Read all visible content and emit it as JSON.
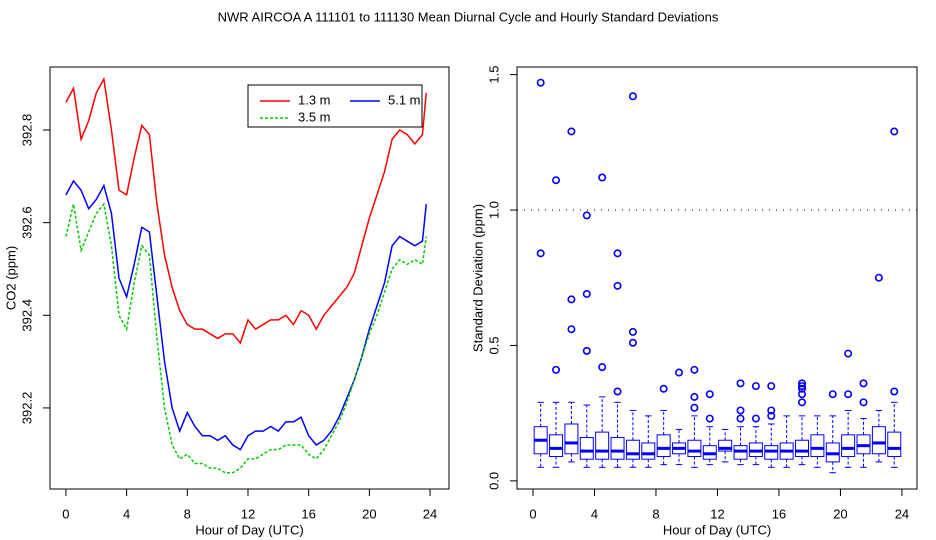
{
  "title": "NWR   AIRCOA A   111101 to 111130   Mean Diurnal Cycle and Hourly Standard Deviations",
  "chart_data": [
    {
      "type": "line",
      "xlabel": "Hour of Day (UTC)",
      "ylabel": "CO2 (ppm)",
      "xlim": [
        -1.05,
        25.25
      ],
      "xticks": [
        0,
        4,
        8,
        12,
        16,
        20,
        24
      ],
      "ylim": [
        392.025,
        392.936
      ],
      "yticks": [
        392.2,
        392.4,
        392.6,
        392.8
      ],
      "legend": "topright",
      "x": [
        0,
        0.5,
        1,
        1.5,
        2,
        2.5,
        3,
        3.5,
        4,
        4.5,
        5,
        5.5,
        6,
        6.5,
        7,
        7.5,
        8,
        8.5,
        9,
        9.5,
        10,
        10.5,
        11,
        11.5,
        12,
        12.5,
        13,
        13.5,
        14,
        14.5,
        15,
        15.5,
        16,
        16.5,
        17,
        17.5,
        18,
        18.5,
        19,
        19.5,
        20,
        20.5,
        21,
        21.5,
        22,
        22.5,
        23,
        23.5,
        23.75
      ],
      "series": [
        {
          "name": "1.3 m",
          "color": "#ff0000",
          "linestyle": "solid",
          "values": [
            392.86,
            392.89,
            392.78,
            392.82,
            392.88,
            392.91,
            392.8,
            392.67,
            392.66,
            392.74,
            392.81,
            392.79,
            392.64,
            392.53,
            392.46,
            392.41,
            392.38,
            392.37,
            392.37,
            392.36,
            392.35,
            392.36,
            392.36,
            392.34,
            392.39,
            392.37,
            392.38,
            392.39,
            392.39,
            392.4,
            392.38,
            392.41,
            392.4,
            392.37,
            392.4,
            392.42,
            392.44,
            392.46,
            392.49,
            392.55,
            392.61,
            392.66,
            392.71,
            392.78,
            392.8,
            392.79,
            392.77,
            392.79,
            392.88
          ]
        },
        {
          "name": "5.1 m",
          "color": "#0000ff",
          "linestyle": "solid",
          "values": [
            392.66,
            392.69,
            392.67,
            392.63,
            392.65,
            392.68,
            392.62,
            392.48,
            392.44,
            392.51,
            392.59,
            392.58,
            392.44,
            392.3,
            392.2,
            392.15,
            392.19,
            392.16,
            392.14,
            392.14,
            392.13,
            392.14,
            392.12,
            392.11,
            392.14,
            392.15,
            392.15,
            392.16,
            392.15,
            392.17,
            392.17,
            392.18,
            392.14,
            392.12,
            392.13,
            392.15,
            392.18,
            392.22,
            392.26,
            392.31,
            392.37,
            392.42,
            392.47,
            392.55,
            392.57,
            392.56,
            392.55,
            392.56,
            392.64
          ]
        },
        {
          "name": "3.5 m",
          "color": "#00cc00",
          "linestyle": "dashed",
          "values": [
            392.57,
            392.64,
            392.54,
            392.58,
            392.62,
            392.64,
            392.55,
            392.4,
            392.37,
            392.47,
            392.55,
            392.53,
            392.35,
            392.2,
            392.12,
            392.09,
            392.1,
            392.08,
            392.08,
            392.07,
            392.07,
            392.06,
            392.06,
            392.07,
            392.09,
            392.09,
            392.1,
            392.11,
            392.11,
            392.12,
            392.12,
            392.12,
            392.1,
            392.09,
            392.11,
            392.14,
            392.17,
            392.21,
            392.26,
            392.31,
            392.36,
            392.4,
            392.45,
            392.5,
            392.52,
            392.51,
            392.52,
            392.51,
            392.57
          ]
        }
      ]
    },
    {
      "type": "box",
      "xlabel": "Hour of Day (UTC)",
      "ylabel": "Standard Deviation (ppm)",
      "xlim": [
        -1.04,
        24.98
      ],
      "xticks": [
        0,
        4,
        8,
        12,
        16,
        20,
        24
      ],
      "ylim": [
        -0.03,
        1.528
      ],
      "yticks": [
        {
          "value": 0,
          "label": "0.0"
        },
        0.5,
        {
          "value": 1,
          "label": "1.0"
        },
        1.5
      ],
      "hline": 1,
      "color": "#0000ff",
      "boxes": [
        {
          "x": 0.5,
          "whislo": 0.05,
          "q1": 0.1,
          "med": 0.15,
          "q3": 0.2,
          "whishi": 0.29,
          "fliers": [
            0.84,
            1.47
          ]
        },
        {
          "x": 1.5,
          "whislo": 0.05,
          "q1": 0.09,
          "med": 0.12,
          "q3": 0.17,
          "whishi": 0.29,
          "fliers": [
            0.41,
            1.11
          ]
        },
        {
          "x": 2.5,
          "whislo": 0.07,
          "q1": 0.1,
          "med": 0.14,
          "q3": 0.21,
          "whishi": 0.29,
          "fliers": [
            0.56,
            0.67,
            1.29
          ]
        },
        {
          "x": 3.5,
          "whislo": 0.05,
          "q1": 0.08,
          "med": 0.11,
          "q3": 0.16,
          "whishi": 0.28,
          "fliers": [
            0.48,
            0.69,
            0.98
          ]
        },
        {
          "x": 4.5,
          "whislo": 0.05,
          "q1": 0.08,
          "med": 0.11,
          "q3": 0.18,
          "whishi": 0.31,
          "fliers": [
            0.42,
            1.12
          ]
        },
        {
          "x": 5.5,
          "whislo": 0.05,
          "q1": 0.08,
          "med": 0.11,
          "q3": 0.16,
          "whishi": 0.29,
          "fliers": [
            0.33,
            0.72,
            0.84
          ]
        },
        {
          "x": 6.5,
          "whislo": 0.05,
          "q1": 0.08,
          "med": 0.1,
          "q3": 0.15,
          "whishi": 0.26,
          "fliers": [
            0.51,
            0.55,
            1.42
          ]
        },
        {
          "x": 7.5,
          "whislo": 0.05,
          "q1": 0.08,
          "med": 0.1,
          "q3": 0.14,
          "whishi": 0.24,
          "fliers": []
        },
        {
          "x": 8.5,
          "whislo": 0.06,
          "q1": 0.09,
          "med": 0.12,
          "q3": 0.17,
          "whishi": 0.26,
          "fliers": [
            0.34
          ]
        },
        {
          "x": 9.5,
          "whislo": 0.06,
          "q1": 0.1,
          "med": 0.12,
          "q3": 0.14,
          "whishi": 0.19,
          "fliers": [
            0.4
          ]
        },
        {
          "x": 10.5,
          "whislo": 0.05,
          "q1": 0.09,
          "med": 0.11,
          "q3": 0.15,
          "whishi": 0.24,
          "fliers": [
            0.27,
            0.31,
            0.41
          ]
        },
        {
          "x": 11.5,
          "whislo": 0.06,
          "q1": 0.08,
          "med": 0.1,
          "q3": 0.13,
          "whishi": 0.2,
          "fliers": [
            0.23,
            0.32
          ]
        },
        {
          "x": 12.5,
          "whislo": 0.07,
          "q1": 0.11,
          "med": 0.12,
          "q3": 0.15,
          "whishi": 0.19,
          "fliers": []
        },
        {
          "x": 13.5,
          "whislo": 0.06,
          "q1": 0.08,
          "med": 0.11,
          "q3": 0.13,
          "whishi": 0.2,
          "fliers": [
            0.23,
            0.26,
            0.36
          ]
        },
        {
          "x": 14.5,
          "whislo": 0.06,
          "q1": 0.09,
          "med": 0.11,
          "q3": 0.14,
          "whishi": 0.2,
          "fliers": [
            0.23,
            0.35
          ]
        },
        {
          "x": 15.5,
          "whislo": 0.05,
          "q1": 0.08,
          "med": 0.11,
          "q3": 0.13,
          "whishi": 0.21,
          "fliers": [
            0.24,
            0.26,
            0.35
          ]
        },
        {
          "x": 16.5,
          "whislo": 0.05,
          "q1": 0.08,
          "med": 0.11,
          "q3": 0.14,
          "whishi": 0.24,
          "fliers": []
        },
        {
          "x": 17.5,
          "whislo": 0.06,
          "q1": 0.09,
          "med": 0.11,
          "q3": 0.15,
          "whishi": 0.24,
          "fliers": [
            0.29,
            0.32,
            0.34,
            0.35,
            0.36
          ]
        },
        {
          "x": 18.5,
          "whislo": 0.05,
          "q1": 0.09,
          "med": 0.12,
          "q3": 0.17,
          "whishi": 0.24,
          "fliers": []
        },
        {
          "x": 19.5,
          "whislo": 0.03,
          "q1": 0.07,
          "med": 0.1,
          "q3": 0.14,
          "whishi": 0.24,
          "fliers": [
            0.32
          ]
        },
        {
          "x": 20.5,
          "whislo": 0.05,
          "q1": 0.09,
          "med": 0.12,
          "q3": 0.17,
          "whishi": 0.26,
          "fliers": [
            0.32,
            0.47
          ]
        },
        {
          "x": 21.5,
          "whislo": 0.05,
          "q1": 0.1,
          "med": 0.13,
          "q3": 0.17,
          "whishi": 0.23,
          "fliers": [
            0.29,
            0.36
          ]
        },
        {
          "x": 22.5,
          "whislo": 0.07,
          "q1": 0.1,
          "med": 0.14,
          "q3": 0.2,
          "whishi": 0.26,
          "fliers": [
            0.75
          ]
        },
        {
          "x": 23.5,
          "whislo": 0.05,
          "q1": 0.09,
          "med": 0.12,
          "q3": 0.18,
          "whishi": 0.29,
          "fliers": [
            0.33,
            1.29
          ]
        }
      ]
    }
  ]
}
